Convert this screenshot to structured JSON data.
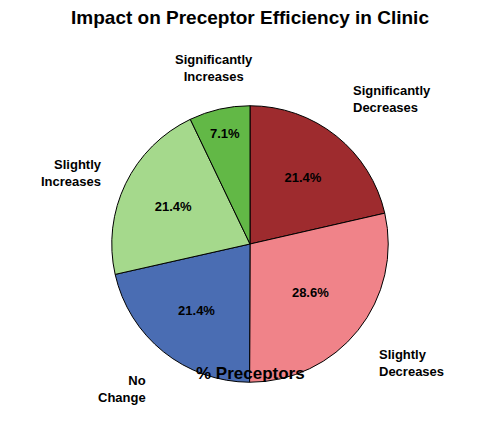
{
  "chart_data": {
    "type": "pie",
    "title": "Impact on Preceptor Efficiency in Clinic",
    "xlabel": "% Preceptors",
    "categories": [
      "Significantly Decreases",
      "Slightly Decreases",
      "No Change",
      "Slightly Increases",
      "Significantly Increases"
    ],
    "values": [
      21.4,
      28.6,
      21.4,
      21.4,
      7.1
    ],
    "value_labels": [
      "21.4%",
      "28.6%",
      "21.4%",
      "21.4%",
      "7.1%"
    ],
    "colors": [
      "#9e2b2e",
      "#f08389",
      "#4a6db3",
      "#a5d98c",
      "#62b846"
    ],
    "data_labels": true
  }
}
